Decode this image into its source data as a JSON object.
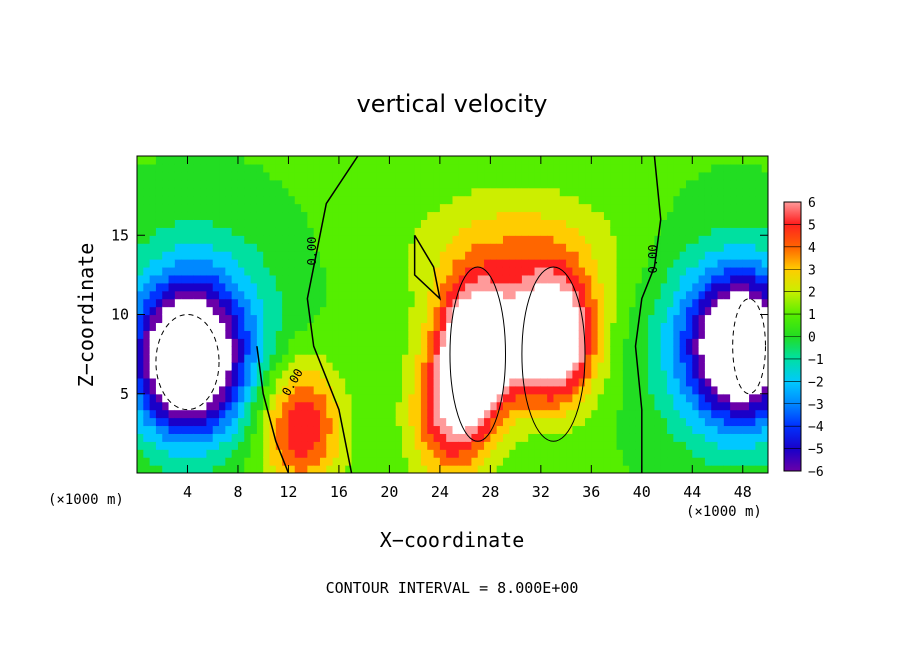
{
  "chart_data": {
    "type": "heatmap",
    "title": "vertical velocity",
    "xlabel": "X−coordinate",
    "ylabel": "Z−coordinate",
    "x_unit_note": "(×1000 m)",
    "y_unit_note": "(×1000 m)",
    "xlim": [
      0,
      50
    ],
    "ylim": [
      0,
      20
    ],
    "x_ticks": [
      4,
      8,
      12,
      16,
      20,
      24,
      28,
      32,
      36,
      40,
      44,
      48
    ],
    "y_ticks": [
      5,
      10,
      15
    ],
    "colorbar": {
      "ticks": [
        "6",
        "5",
        "4",
        "3",
        "2",
        "1",
        "0",
        "−1",
        "−2",
        "−3",
        "−4",
        "−5",
        "−6"
      ],
      "range": [
        -6,
        6
      ]
    },
    "contour_labels": [
      "0.00",
      "0.00",
      "0.00"
    ],
    "footer": "CONTOUR INTERVAL = 8.000E+00",
    "field_features": [
      {
        "kind": "updraft",
        "x": 27,
        "z": 8.0,
        "amp": 9
      },
      {
        "kind": "updraft",
        "x": 33,
        "z": 8.5,
        "amp": 9
      },
      {
        "kind": "updraft",
        "x": 25,
        "z": 3.5,
        "amp": 5
      },
      {
        "kind": "updraft",
        "x": 13,
        "z": 3.0,
        "amp": 5
      },
      {
        "kind": "downdraft",
        "x": 4,
        "z": 7.0,
        "amp": -9
      },
      {
        "kind": "downdraft",
        "x": 48,
        "z": 8.0,
        "amp": -8
      }
    ]
  }
}
